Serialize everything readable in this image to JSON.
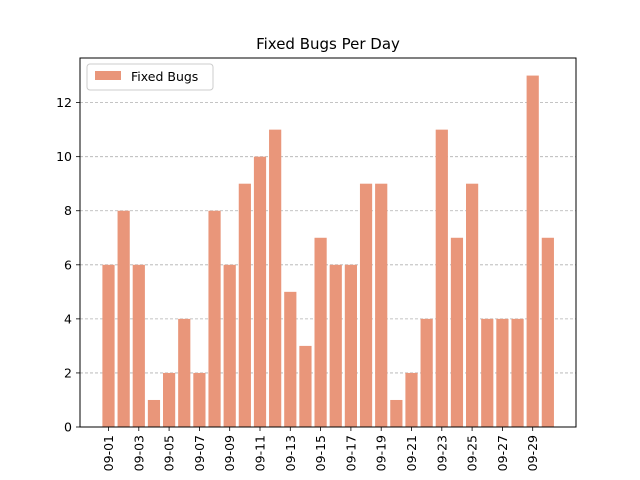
{
  "chart_data": {
    "type": "bar",
    "title": "Fixed Bugs Per Day",
    "xlabel": "",
    "ylabel": "",
    "categories": [
      "09-01",
      "09-02",
      "09-03",
      "09-04",
      "09-05",
      "09-06",
      "09-07",
      "09-08",
      "09-09",
      "09-10",
      "09-11",
      "09-12",
      "09-13",
      "09-14",
      "09-15",
      "09-16",
      "09-17",
      "09-18",
      "09-19",
      "09-20",
      "09-21",
      "09-22",
      "09-23",
      "09-24",
      "09-25",
      "09-26",
      "09-27",
      "09-28",
      "09-29",
      "09-30"
    ],
    "tick_labels": [
      "09-01",
      "09-03",
      "09-05",
      "09-07",
      "09-09",
      "09-11",
      "09-13",
      "09-15",
      "09-17",
      "09-19",
      "09-21",
      "09-23",
      "09-25",
      "09-27",
      "09-29"
    ],
    "series": [
      {
        "name": "Fixed Bugs",
        "color": "#e9967a",
        "values": [
          6,
          8,
          6,
          1,
          2,
          4,
          2,
          8,
          6,
          9,
          10,
          11,
          5,
          3,
          7,
          6,
          6,
          9,
          9,
          1,
          2,
          4,
          11,
          7,
          9,
          4,
          4,
          4,
          13,
          7
        ]
      }
    ],
    "ylim": [
      0,
      13.65
    ],
    "yticks": [
      0,
      2,
      4,
      6,
      8,
      10,
      12
    ],
    "grid": "y-dashed",
    "legend_position": "upper-left"
  }
}
